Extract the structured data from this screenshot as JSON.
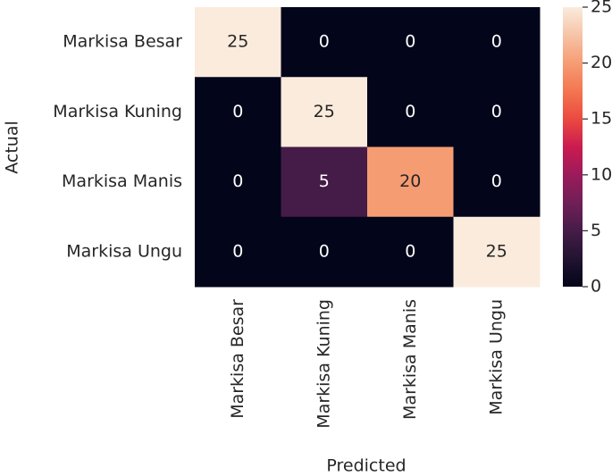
{
  "chart_data": {
    "type": "heatmap",
    "x": [
      "Markisa Besar",
      "Markisa Kuning",
      "Markisa Manis",
      "Markisa Ungu"
    ],
    "y": [
      "Markisa Besar",
      "Markisa Kuning",
      "Markisa Manis",
      "Markisa Ungu"
    ],
    "z": [
      [
        25,
        0,
        0,
        0
      ],
      [
        0,
        25,
        0,
        0
      ],
      [
        0,
        5,
        20,
        0
      ],
      [
        0,
        0,
        0,
        25
      ]
    ],
    "xlabel": "Predicted",
    "ylabel": "Actual",
    "colormap": "rocket",
    "zlim": [
      0,
      25
    ],
    "zticks": [
      0,
      5,
      10,
      15,
      20,
      25
    ]
  }
}
